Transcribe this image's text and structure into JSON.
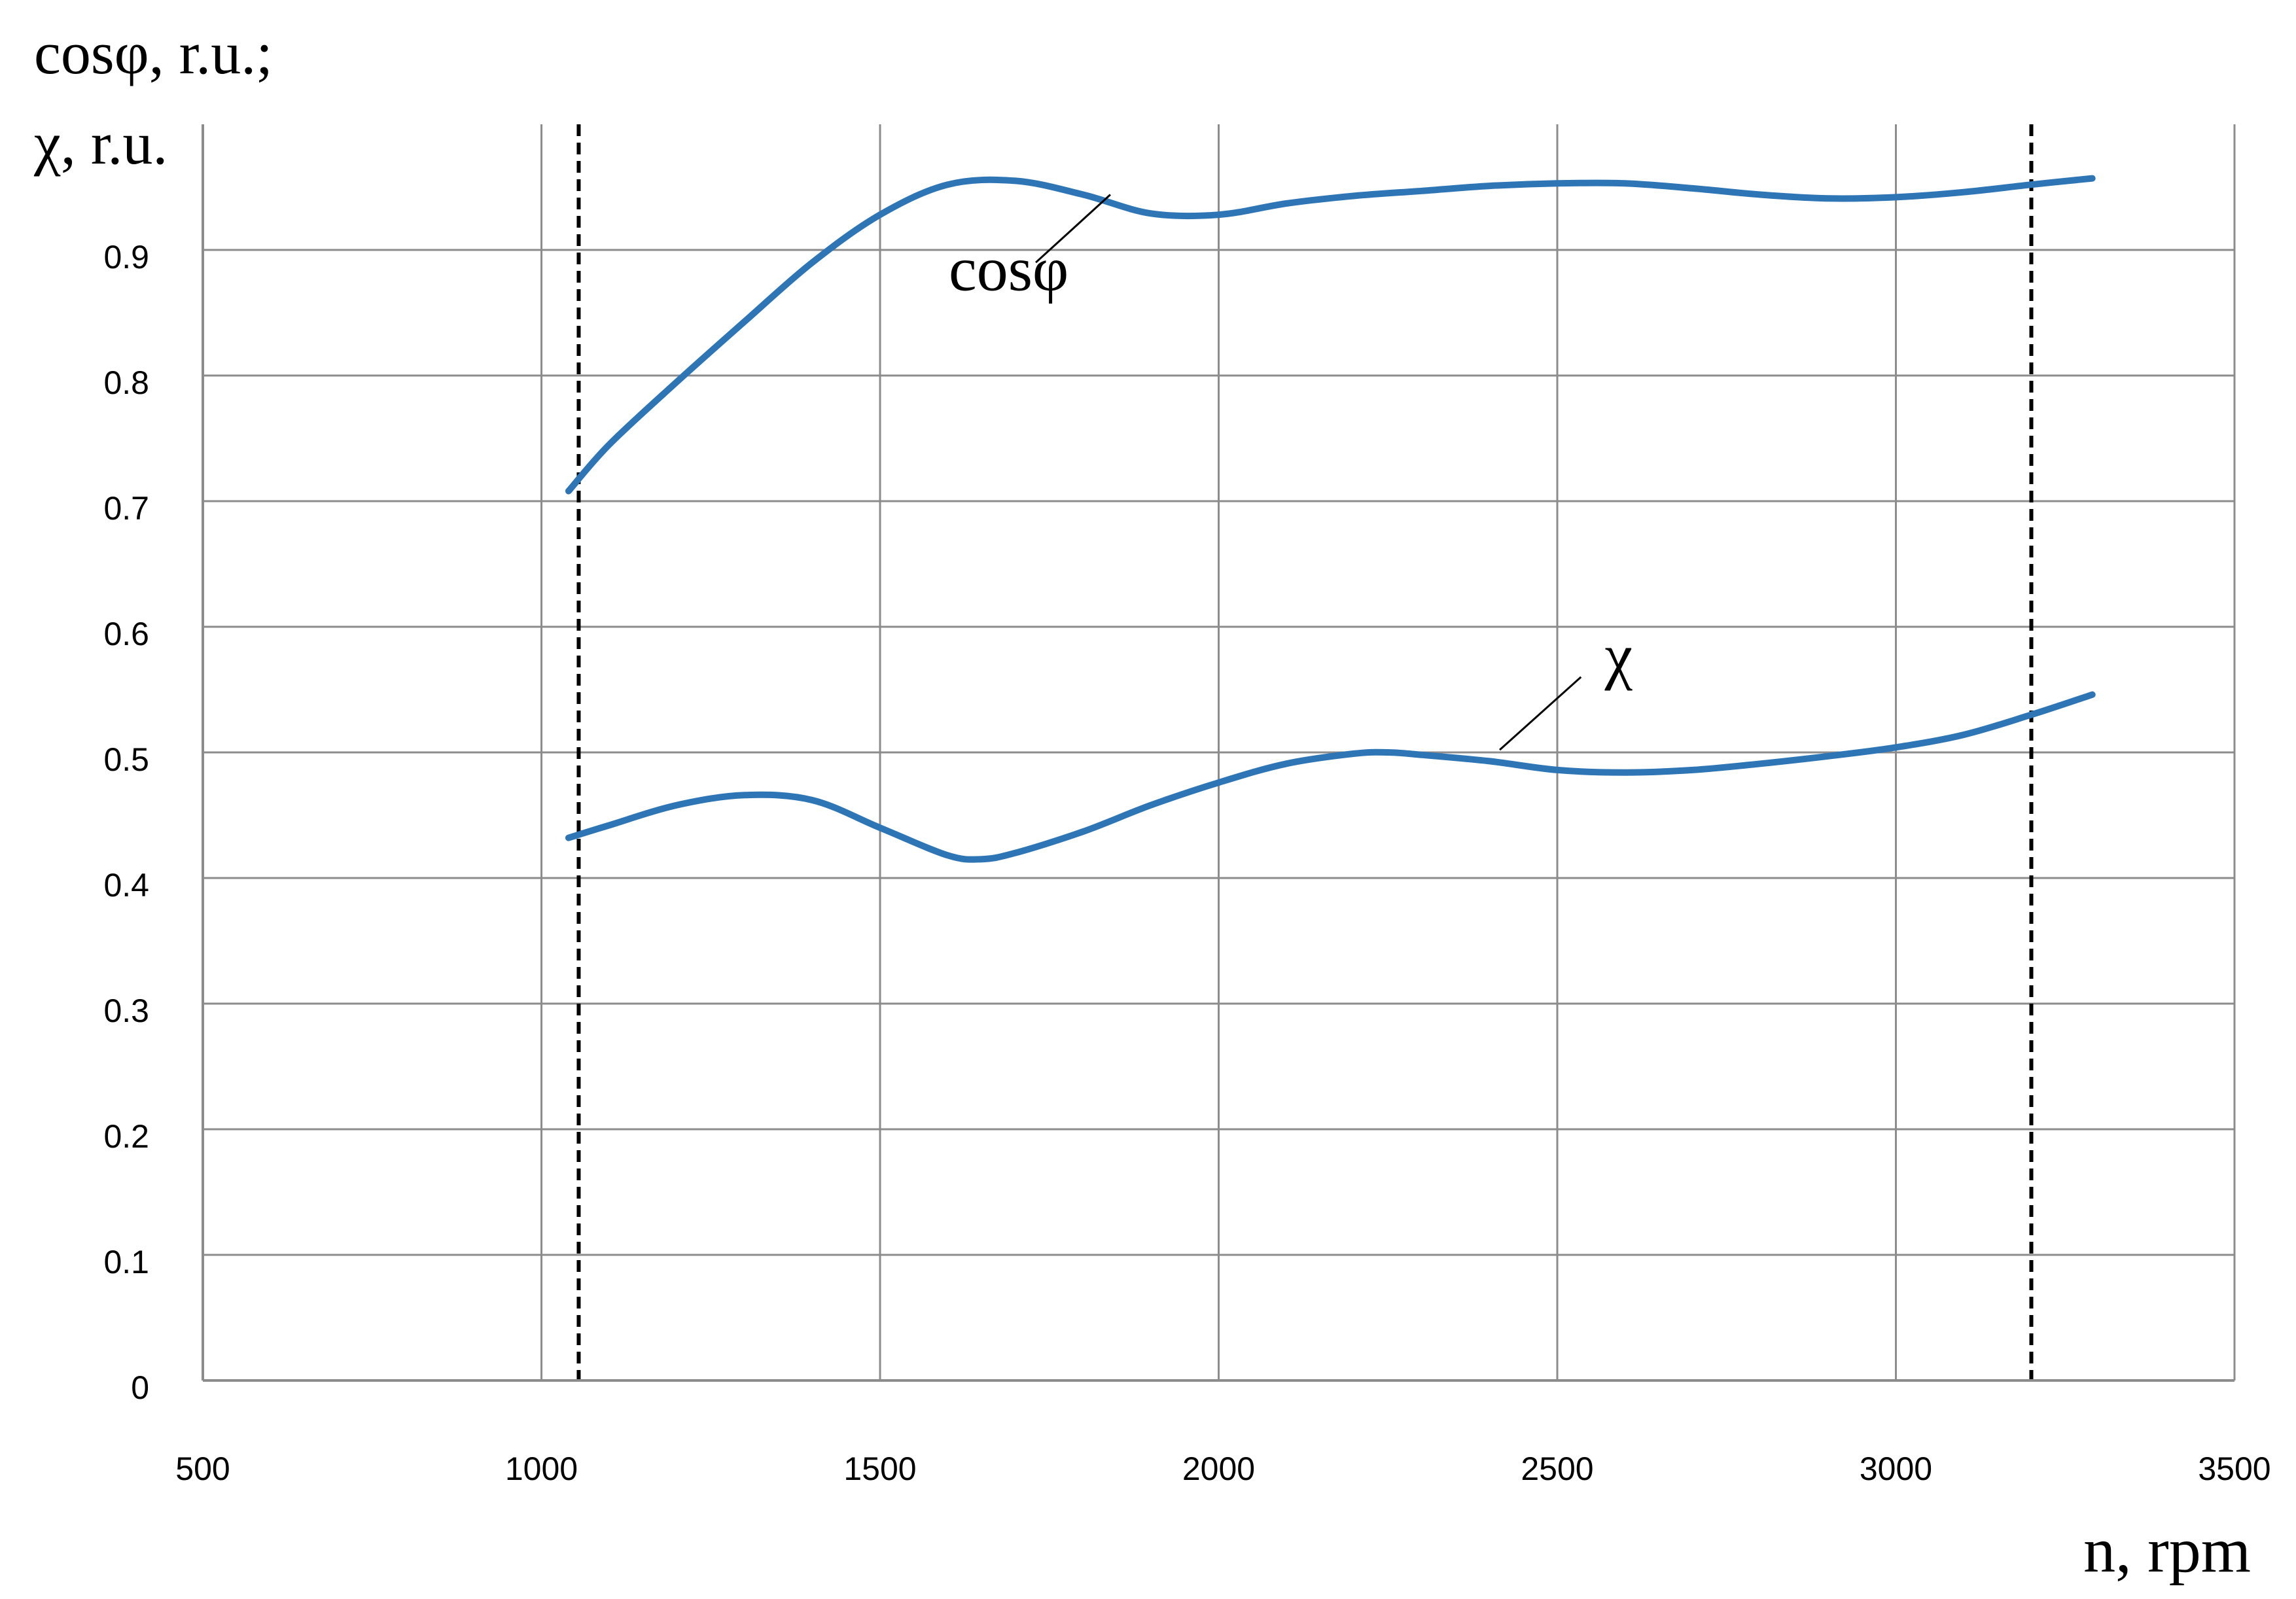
{
  "chart_data": {
    "type": "line",
    "title": "",
    "ylabel_line1": "cosφ, r.u.;",
    "ylabel_line2": "χ, r.u.",
    "xlabel": "n, rpm",
    "xlim": [
      500,
      3500
    ],
    "ylim": [
      0,
      1
    ],
    "x_ticks": [
      500,
      1000,
      1500,
      2000,
      2500,
      3000,
      3500
    ],
    "x_tick_labels": [
      "500",
      "1000",
      "1500",
      "2000",
      "2500",
      "3000",
      "3500"
    ],
    "y_ticks": [
      0,
      0.1,
      0.2,
      0.3,
      0.4,
      0.5,
      0.6,
      0.7,
      0.8,
      0.9
    ],
    "y_tick_labels": [
      "0",
      "0.1",
      "0.2",
      "0.3",
      "0.4",
      "0.5",
      "0.6",
      "0.7",
      "0.8",
      "0.9"
    ],
    "grid": true,
    "vertical_reference_lines": [
      1055,
      3200
    ],
    "series": [
      {
        "name": "cosφ",
        "color": "#2e75b6",
        "x": [
          1040,
          1100,
          1200,
          1300,
          1400,
          1500,
          1600,
          1700,
          1800,
          1900,
          2000,
          2100,
          2200,
          2300,
          2400,
          2500,
          2600,
          2700,
          2800,
          2900,
          3000,
          3100,
          3200,
          3290
        ],
        "y": [
          0.708,
          0.745,
          0.795,
          0.843,
          0.89,
          0.928,
          0.952,
          0.955,
          0.944,
          0.929,
          0.928,
          0.937,
          0.943,
          0.947,
          0.951,
          0.953,
          0.953,
          0.949,
          0.944,
          0.941,
          0.942,
          0.946,
          0.952,
          0.957
        ],
        "label": "cosφ",
        "label_pos": [
          1690,
          0.868
        ],
        "label_pointer": [
          [
            1730,
            0.89
          ],
          [
            1840,
            0.944
          ]
        ]
      },
      {
        "name": "χ",
        "color": "#2e75b6",
        "x": [
          1040,
          1100,
          1200,
          1300,
          1400,
          1500,
          1600,
          1650,
          1700,
          1800,
          1900,
          2000,
          2100,
          2200,
          2250,
          2300,
          2400,
          2500,
          2600,
          2700,
          2800,
          2900,
          3000,
          3100,
          3200,
          3290
        ],
        "y": [
          0.432,
          0.442,
          0.458,
          0.466,
          0.462,
          0.44,
          0.418,
          0.415,
          0.42,
          0.437,
          0.458,
          0.476,
          0.491,
          0.499,
          0.5,
          0.498,
          0.493,
          0.486,
          0.484,
          0.486,
          0.491,
          0.497,
          0.504,
          0.514,
          0.53,
          0.546
        ],
        "label": "χ",
        "label_pos": [
          2570,
          0.56
        ],
        "label_pointer": [
          [
            2535,
            0.56
          ],
          [
            2415,
            0.502
          ]
        ]
      }
    ]
  }
}
